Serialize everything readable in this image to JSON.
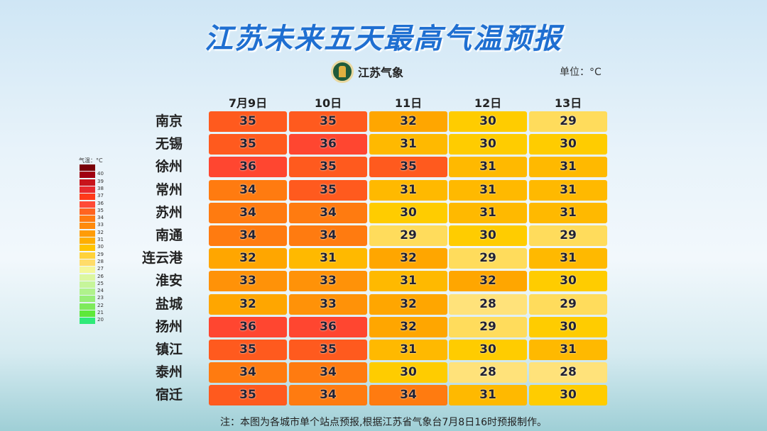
{
  "title": "江苏未来五天最高气温预报",
  "logo_text": "江苏气象",
  "unit_label": "单位：°C",
  "note": "注：本图为各城市单个站点预报,根据江苏省气象台7月8日16时预报制作。",
  "chart_data": {
    "type": "heatmap",
    "title": "江苏未来五天最高气温预报",
    "columns": [
      "7月9日",
      "10日",
      "11日",
      "12日",
      "13日"
    ],
    "rows": [
      "南京",
      "无锡",
      "徐州",
      "常州",
      "苏州",
      "南通",
      "连云港",
      "淮安",
      "盐城",
      "扬州",
      "镇江",
      "泰州",
      "宿迁"
    ],
    "values": [
      [
        35,
        35,
        32,
        30,
        29
      ],
      [
        35,
        36,
        31,
        30,
        30
      ],
      [
        36,
        35,
        35,
        31,
        31
      ],
      [
        34,
        35,
        31,
        31,
        31
      ],
      [
        34,
        34,
        30,
        31,
        31
      ],
      [
        34,
        34,
        29,
        30,
        29
      ],
      [
        32,
        31,
        32,
        29,
        31
      ],
      [
        33,
        33,
        31,
        32,
        30
      ],
      [
        32,
        33,
        32,
        28,
        29
      ],
      [
        36,
        36,
        32,
        29,
        30
      ],
      [
        35,
        35,
        31,
        30,
        31
      ],
      [
        34,
        34,
        30,
        28,
        28
      ],
      [
        35,
        34,
        34,
        31,
        30
      ]
    ],
    "legend": {
      "title": "气温：°C",
      "ticks": [
        40,
        39,
        38,
        37,
        36,
        35,
        34,
        33,
        32,
        31,
        30,
        29,
        28,
        27,
        26,
        25,
        24,
        23,
        22,
        21,
        20
      ],
      "colors": [
        "#7a0008",
        "#a00012",
        "#c8141c",
        "#e82a2e",
        "#ff3a1a",
        "#ff4a36",
        "#ff6420",
        "#ff7a10",
        "#ff8a0c",
        "#ff9c06",
        "#ffae00",
        "#ffc400",
        "#ffd23a",
        "#ffdc6a",
        "#f4f79a",
        "#dcf7a0",
        "#c6f59a",
        "#b0f28c",
        "#98ee78",
        "#7eea5c",
        "#5ee83a",
        "#30ea78"
      ]
    },
    "value_colors": {
      "28": "#ffe27a",
      "29": "#ffdc5c",
      "30": "#ffcc00",
      "31": "#ffb900",
      "32": "#ffa600",
      "33": "#ff9208",
      "34": "#ff7b10",
      "35": "#ff5a1e",
      "36": "#ff4630"
    }
  }
}
